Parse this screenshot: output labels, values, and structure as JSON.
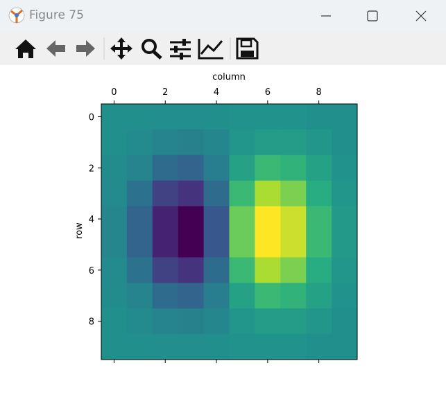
{
  "window": {
    "title": "Figure 75"
  },
  "chart_data": {
    "type": "heatmap",
    "colormap": "viridis",
    "xlabel": "column",
    "ylabel": "row",
    "xlim": [
      -0.5,
      9.5
    ],
    "ylim": [
      9.5,
      -0.5
    ],
    "xticks": [
      0,
      2,
      4,
      6,
      8
    ],
    "yticks": [
      0,
      2,
      4,
      6,
      8
    ],
    "z": [
      [
        0,
        0,
        -0.02,
        -0.02,
        0,
        0.02,
        0.02,
        0.02,
        0,
        0
      ],
      [
        0,
        -0.05,
        -0.1,
        -0.12,
        -0.08,
        0.05,
        0.1,
        0.1,
        0.05,
        0
      ],
      [
        -0.03,
        -0.1,
        -0.3,
        -0.35,
        -0.15,
        0.15,
        0.35,
        0.3,
        0.15,
        0.03
      ],
      [
        -0.05,
        -0.25,
        -0.6,
        -0.7,
        -0.3,
        0.35,
        0.75,
        0.6,
        0.25,
        0.05
      ],
      [
        -0.08,
        -0.35,
        -0.8,
        -1.0,
        -0.45,
        0.55,
        1.0,
        0.85,
        0.35,
        0.08
      ],
      [
        -0.08,
        -0.35,
        -0.8,
        -1.0,
        -0.45,
        0.55,
        1.0,
        0.85,
        0.35,
        0.08
      ],
      [
        -0.05,
        -0.25,
        -0.6,
        -0.7,
        -0.3,
        0.35,
        0.75,
        0.6,
        0.25,
        0.05
      ],
      [
        -0.03,
        -0.1,
        -0.3,
        -0.35,
        -0.15,
        0.15,
        0.35,
        0.3,
        0.15,
        0.03
      ],
      [
        0,
        -0.05,
        -0.1,
        -0.12,
        -0.08,
        0.05,
        0.1,
        0.1,
        0.05,
        0
      ],
      [
        0,
        0,
        -0.02,
        -0.02,
        0,
        0.02,
        0.02,
        0.02,
        0,
        0
      ]
    ]
  }
}
